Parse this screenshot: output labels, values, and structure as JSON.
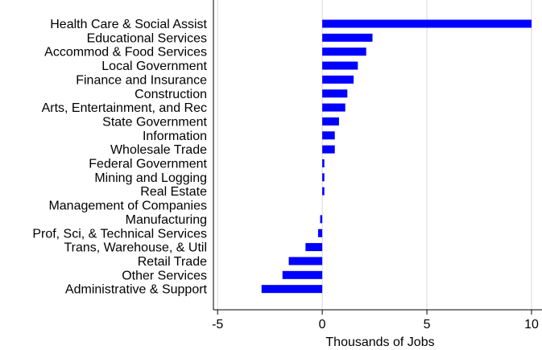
{
  "chart_data": {
    "type": "bar",
    "orientation": "horizontal",
    "categories": [
      "Health Care & Social Assist",
      "Educational Services",
      "Accommod & Food Services",
      "Local Government",
      "Finance and Insurance",
      "Construction",
      "Arts, Entertainment, and Rec",
      "State Government",
      "Information",
      "Wholesale Trade",
      "Federal Government",
      "Mining and Logging",
      "Real Estate",
      "Management of Companies",
      "Manufacturing",
      "Prof, Sci, & Technical Services",
      "Trans, Warehouse, & Util",
      "Retail Trade",
      "Other Services",
      "Administrative & Support"
    ],
    "values": [
      10.0,
      2.4,
      2.1,
      1.7,
      1.5,
      1.2,
      1.1,
      0.8,
      0.6,
      0.6,
      0.1,
      0.1,
      0.1,
      0.0,
      -0.1,
      -0.2,
      -0.8,
      -1.6,
      -1.9,
      -2.9
    ],
    "xlabel": "Thousands of Jobs",
    "ylabel": "",
    "xlim": [
      -5.2,
      10.5
    ],
    "xticks": [
      -5,
      0,
      5,
      10
    ],
    "xtick_labels": [
      "-5",
      "0",
      "5",
      "10"
    ],
    "grid": "vertical",
    "bar_color": "#0000ff"
  }
}
